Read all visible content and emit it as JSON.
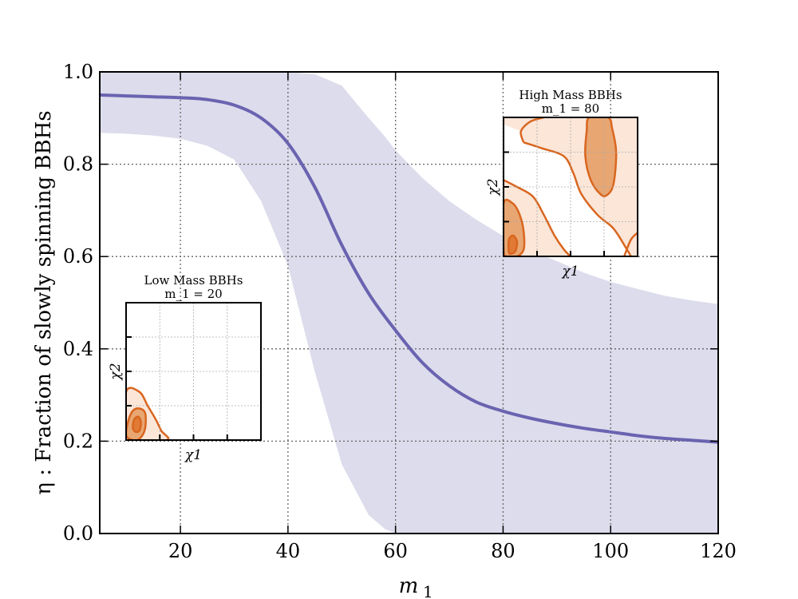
{
  "chart_data": {
    "type": "line",
    "title": "",
    "xlabel": "m_1",
    "ylabel": "η : Fraction of slowly spinning BBHs",
    "xlim": [
      5,
      120
    ],
    "ylim": [
      0.0,
      1.0
    ],
    "x_ticks": [
      "20",
      "40",
      "60",
      "80",
      "100",
      "120"
    ],
    "y_ticks": [
      "0.0",
      "0.2",
      "0.4",
      "0.6",
      "0.8",
      "1.0"
    ],
    "grid": true,
    "colors": {
      "median_line": "#6a63b0",
      "band": "#dcdcec",
      "contour_line": "#d9661f",
      "contour_fill_outer": "#fbe6d8",
      "contour_fill_inner": "#e8a672"
    },
    "series": [
      {
        "kind": "median",
        "x": [
          5,
          10,
          15,
          20,
          25,
          30,
          35,
          40,
          45,
          50,
          55,
          60,
          65,
          70,
          75,
          80,
          85,
          90,
          95,
          100,
          105,
          110,
          115,
          120
        ],
        "y": [
          0.95,
          0.948,
          0.946,
          0.944,
          0.94,
          0.928,
          0.9,
          0.845,
          0.75,
          0.625,
          0.52,
          0.44,
          0.37,
          0.32,
          0.285,
          0.265,
          0.25,
          0.238,
          0.228,
          0.22,
          0.212,
          0.206,
          0.202,
          0.198
        ]
      },
      {
        "kind": "credible_band",
        "x": [
          5,
          10,
          15,
          20,
          25,
          30,
          35,
          40,
          45,
          50,
          55,
          58,
          60,
          65,
          70,
          75,
          80,
          85,
          90,
          95,
          100,
          105,
          110,
          115,
          120
        ],
        "lower": [
          0.868,
          0.866,
          0.862,
          0.855,
          0.84,
          0.81,
          0.72,
          0.58,
          0.35,
          0.15,
          0.04,
          0.01,
          0.0,
          0.0,
          0.0,
          0.0,
          0.0,
          0.0,
          0.0,
          0.0,
          0.0,
          0.0,
          0.0,
          0.0,
          0.0
        ],
        "upper": [
          1.0,
          1.0,
          1.0,
          1.0,
          1.0,
          1.0,
          1.0,
          1.0,
          0.995,
          0.97,
          0.9,
          0.86,
          0.83,
          0.77,
          0.72,
          0.68,
          0.645,
          0.615,
          0.59,
          0.565,
          0.545,
          0.53,
          0.515,
          0.505,
          0.497
        ]
      }
    ],
    "insets": [
      {
        "title": "Low Mass BBHs",
        "subtitle": "m_1 = 20",
        "xlabel": "χ1",
        "ylabel": "χ2",
        "contours": [
          {
            "level": "outer",
            "points": [
              [
                0,
                0
              ],
              [
                0,
                0.35
              ],
              [
                0.1,
                0.35
              ],
              [
                0.16,
                0.25
              ],
              [
                0.22,
                0.15
              ],
              [
                0.26,
                0.07
              ],
              [
                0.3,
                0
              ]
            ]
          },
          {
            "level": "middle",
            "points": [
              [
                0,
                0.04
              ],
              [
                0.03,
                0.18
              ],
              [
                0.08,
                0.23
              ],
              [
                0.14,
                0.2
              ],
              [
                0.14,
                0.08
              ],
              [
                0.1,
                0.01
              ],
              [
                0.05,
                0
              ]
            ]
          },
          {
            "level": "inner",
            "points": [
              [
                0.05,
                0.09
              ],
              [
                0.06,
                0.15
              ],
              [
                0.09,
                0.17
              ],
              [
                0.11,
                0.13
              ],
              [
                0.1,
                0.07
              ],
              [
                0.07,
                0.06
              ]
            ]
          }
        ]
      },
      {
        "title": "High Mass BBHs",
        "subtitle": "m_1 = 80",
        "xlabel": "χ1",
        "ylabel": "χ2",
        "contours": [
          {
            "level": "outer",
            "points": [
              [
                0,
                1
              ],
              [
                1,
                1
              ],
              [
                1,
                0
              ],
              [
                0,
                0
              ]
            ]
          },
          {
            "level": "middle",
            "points": [
              [
                0.61,
                0.72
              ],
              [
                0.65,
                0.55
              ],
              [
                0.72,
                0.45
              ],
              [
                0.77,
                0.44
              ],
              [
                0.82,
                0.52
              ],
              [
                0.84,
                0.75
              ],
              [
                0.81,
                0.92
              ],
              [
                0.78,
                1.0
              ],
              [
                0.64,
                1.0
              ],
              [
                0.62,
                0.9
              ]
            ]
          },
          {
            "level": "middle",
            "points": [
              [
                0,
                0.05
              ],
              [
                0,
                0.38
              ],
              [
                0.07,
                0.38
              ],
              [
                0.12,
                0.3
              ],
              [
                0.15,
                0.18
              ],
              [
                0.15,
                0.05
              ],
              [
                0.1,
                0
              ],
              [
                0.02,
                0
              ]
            ]
          },
          {
            "level": "inner",
            "points": [
              [
                0.04,
                0.03
              ],
              [
                0.04,
                0.12
              ],
              [
                0.07,
                0.15
              ],
              [
                0.1,
                0.11
              ],
              [
                0.09,
                0.04
              ],
              [
                0.06,
                0.02
              ]
            ]
          }
        ],
        "boundary_lines": [
          {
            "points": [
              [
                0.15,
                0.82
              ],
              [
                0.13,
                0.9
              ],
              [
                0.2,
                0.97
              ],
              [
                0.3,
                1.0
              ]
            ]
          },
          {
            "points": [
              [
                0.15,
                0.82
              ],
              [
                0.28,
                0.78
              ],
              [
                0.45,
                0.72
              ],
              [
                0.52,
                0.6
              ],
              [
                0.58,
                0.45
              ],
              [
                0.7,
                0.3
              ],
              [
                0.82,
                0.2
              ],
              [
                0.92,
                0.05
              ],
              [
                0.95,
                0
              ]
            ]
          },
          {
            "points": [
              [
                0.0,
                0.55
              ],
              [
                0.1,
                0.5
              ],
              [
                0.22,
                0.43
              ],
              [
                0.3,
                0.3
              ],
              [
                0.38,
                0.15
              ],
              [
                0.45,
                0.05
              ],
              [
                0.5,
                0.0
              ]
            ]
          },
          {
            "points": [
              [
                0.9,
                0
              ],
              [
                0.95,
                0.12
              ],
              [
                1.0,
                0.17
              ]
            ]
          }
        ]
      }
    ]
  }
}
